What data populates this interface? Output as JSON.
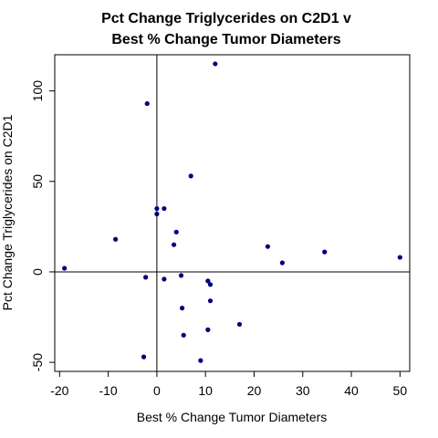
{
  "chart_data": {
    "type": "scatter",
    "title_lines": [
      "Pct Change Triglycerides on C2D1 v",
      "Best % Change Tumor Diameters"
    ],
    "xlabel": "Best % Change Tumor Diameters",
    "ylabel": "Pct Change Triglycerides on C2D1",
    "xlim": [
      -21,
      52
    ],
    "ylim": [
      -55,
      120
    ],
    "x_ticks": [
      -20,
      -10,
      0,
      10,
      20,
      30,
      40,
      50
    ],
    "y_ticks": [
      -50,
      0,
      50,
      100
    ],
    "x_tick_labels": [
      "-20",
      "-10",
      "0",
      "10",
      "20",
      "30",
      "40",
      "50"
    ],
    "y_tick_labels": [
      "-50",
      "0",
      "50",
      "100"
    ],
    "reference_lines": {
      "x": 0,
      "y": 0
    },
    "point_color": "#00007F",
    "points": [
      {
        "x": 12,
        "y": 115
      },
      {
        "x": -2,
        "y": 93
      },
      {
        "x": 7,
        "y": 53
      },
      {
        "x": 0,
        "y": 35
      },
      {
        "x": 1.5,
        "y": 35
      },
      {
        "x": 0,
        "y": 32
      },
      {
        "x": 4,
        "y": 22
      },
      {
        "x": -8.5,
        "y": 18
      },
      {
        "x": 3.5,
        "y": 15
      },
      {
        "x": 22.8,
        "y": 14
      },
      {
        "x": 34.5,
        "y": 11
      },
      {
        "x": 25.8,
        "y": 5
      },
      {
        "x": 50,
        "y": 8
      },
      {
        "x": -19,
        "y": 2
      },
      {
        "x": -2.3,
        "y": -3
      },
      {
        "x": 1.5,
        "y": -4
      },
      {
        "x": 5,
        "y": -2
      },
      {
        "x": 10.5,
        "y": -5
      },
      {
        "x": 11,
        "y": -7
      },
      {
        "x": 11,
        "y": -16
      },
      {
        "x": 5.2,
        "y": -20
      },
      {
        "x": 17,
        "y": -29
      },
      {
        "x": 10.5,
        "y": -32
      },
      {
        "x": 5.5,
        "y": -35
      },
      {
        "x": -2.7,
        "y": -47
      },
      {
        "x": 9,
        "y": -49
      }
    ]
  }
}
